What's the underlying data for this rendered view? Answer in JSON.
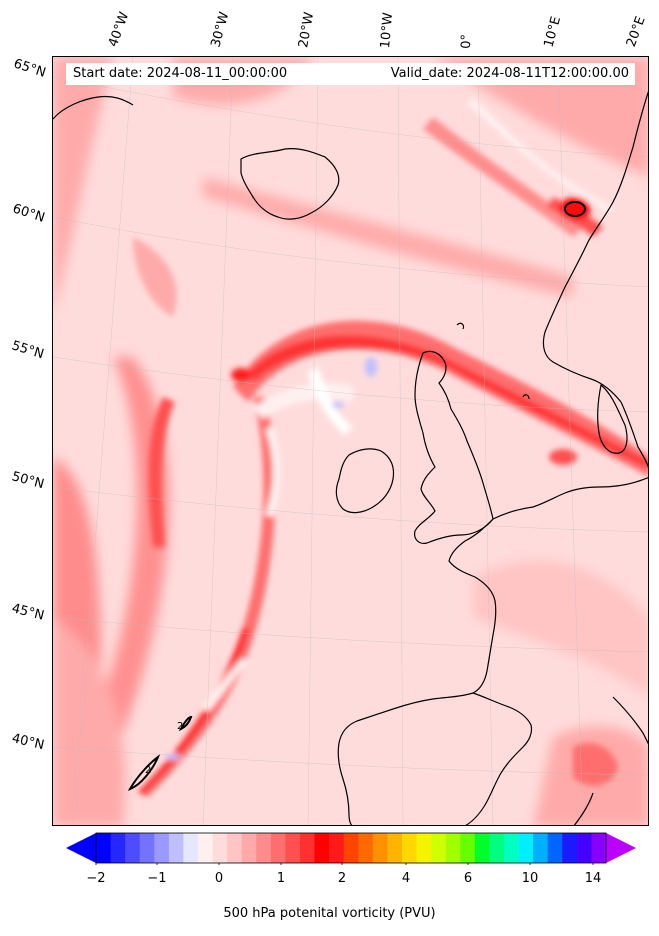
{
  "map": {
    "start_label": "Start date: 2024-08-11_00:00:00",
    "valid_label": "Valid_date: 2024-08-11T12:00:00.00",
    "field": "500 hPa potential vorticity",
    "lat_labels": [
      "65°N",
      "60°N",
      "55°N",
      "50°N",
      "45°N",
      "40°N"
    ],
    "lon_labels": [
      "40°W",
      "30°W",
      "20°W",
      "10°W",
      "0°",
      "10°E",
      "20°E"
    ],
    "contour_labels": [
      "2",
      "2"
    ]
  },
  "colorbar": {
    "label": "500 hPa potenital vorticity (PVU)",
    "ticks": [
      "−2",
      "−1",
      "0",
      "1",
      "2",
      "4",
      "6",
      "10",
      "14"
    ],
    "colors": [
      "#0000ff",
      "#2626ff",
      "#4d4dff",
      "#7373ff",
      "#9999ff",
      "#bfbfff",
      "#e6e6ff",
      "#fff0f0",
      "#ffdcdc",
      "#ffc4c4",
      "#ffaaaa",
      "#ff8c8c",
      "#ff6e6e",
      "#ff5050",
      "#ff3030",
      "#ff0000",
      "#ff1a1a",
      "#ff4400",
      "#ff6a00",
      "#ff9000",
      "#ffb400",
      "#ffd800",
      "#f4f400",
      "#d0ff00",
      "#a0ff00",
      "#66ff00",
      "#00ff2a",
      "#00ff80",
      "#00ffc0",
      "#00eeff",
      "#00b0ff",
      "#0066ff",
      "#1a1aff",
      "#4400ff",
      "#8800ff"
    ],
    "under_color": "#0000ff",
    "over_color": "#bb00ff"
  }
}
